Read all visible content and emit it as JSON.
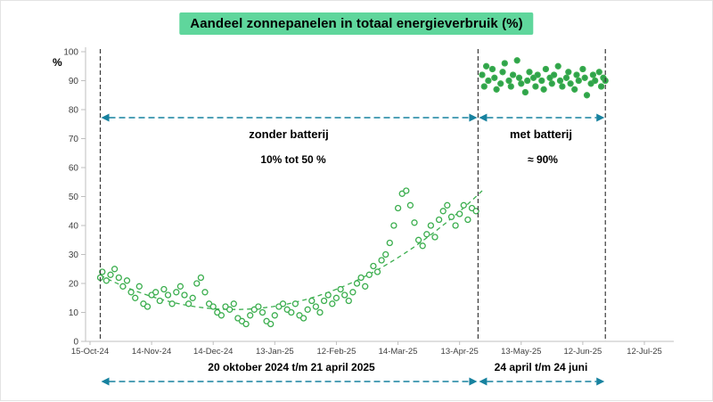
{
  "title": "Aandeel zonnepanelen in totaal energieverbruik (%)",
  "y_axis_unit": "%",
  "annotations": {
    "period1_label": "zonder batterij",
    "period1_range": "10% tot 50 %",
    "period2_label": "met batterij",
    "period2_range": "≈ 90%",
    "period1_dates": "20 oktober 2024 t/m 21 april 2025",
    "period2_dates": "24 april t/m 24 juni"
  },
  "colors": {
    "title_bg": "#5fd69c",
    "point_green": "#3bae4e",
    "point_fill_met": "#2fa24c",
    "arrow_teal": "#17829f",
    "divider": "#3a3a3a",
    "axis": "#bfbfbf",
    "tick_text": "#404040"
  },
  "chart_data": {
    "type": "scatter",
    "title": "Aandeel zonnepanelen in totaal energieverbruik (%)",
    "xlabel": "",
    "ylabel": "%",
    "ylim": [
      0,
      100
    ],
    "yticks": [
      0,
      10,
      20,
      30,
      40,
      50,
      60,
      70,
      80,
      90,
      100
    ],
    "grid": false,
    "legend_position": "none",
    "x_day_zero_label": "15-Oct-24",
    "x_tick_labels": [
      "15-Oct-24",
      "14-Nov-24",
      "14-Dec-24",
      "13-Jan-25",
      "12-Feb-25",
      "14-Mar-25",
      "13-Apr-25",
      "13-May-25",
      "12-Jun-25",
      "12-Jul-25"
    ],
    "x_tick_days": [
      0,
      30,
      60,
      90,
      120,
      150,
      180,
      210,
      240,
      270
    ],
    "xlim_days": [
      0,
      270
    ],
    "series": [
      {
        "name": "zonder batterij",
        "marker": "open-circle",
        "points": [
          [
            5,
            22
          ],
          [
            6,
            24
          ],
          [
            8,
            21
          ],
          [
            10,
            23
          ],
          [
            12,
            25
          ],
          [
            14,
            22
          ],
          [
            16,
            19
          ],
          [
            18,
            21
          ],
          [
            20,
            17
          ],
          [
            22,
            15
          ],
          [
            24,
            19
          ],
          [
            26,
            13
          ],
          [
            28,
            12
          ],
          [
            30,
            16
          ],
          [
            32,
            17
          ],
          [
            34,
            14
          ],
          [
            36,
            18
          ],
          [
            38,
            16
          ],
          [
            40,
            13
          ],
          [
            42,
            17
          ],
          [
            44,
            19
          ],
          [
            46,
            16
          ],
          [
            48,
            13
          ],
          [
            50,
            15
          ],
          [
            52,
            20
          ],
          [
            54,
            22
          ],
          [
            56,
            17
          ],
          [
            58,
            13
          ],
          [
            60,
            12
          ],
          [
            62,
            10
          ],
          [
            64,
            9
          ],
          [
            66,
            12
          ],
          [
            68,
            11
          ],
          [
            70,
            13
          ],
          [
            72,
            8
          ],
          [
            74,
            7
          ],
          [
            76,
            6
          ],
          [
            78,
            9
          ],
          [
            80,
            11
          ],
          [
            82,
            12
          ],
          [
            84,
            10
          ],
          [
            86,
            7
          ],
          [
            88,
            6
          ],
          [
            90,
            9
          ],
          [
            92,
            12
          ],
          [
            94,
            13
          ],
          [
            96,
            11
          ],
          [
            98,
            10
          ],
          [
            100,
            13
          ],
          [
            102,
            9
          ],
          [
            104,
            8
          ],
          [
            106,
            11
          ],
          [
            108,
            14
          ],
          [
            110,
            12
          ],
          [
            112,
            10
          ],
          [
            114,
            14
          ],
          [
            116,
            16
          ],
          [
            118,
            13
          ],
          [
            120,
            15
          ],
          [
            122,
            18
          ],
          [
            124,
            16
          ],
          [
            126,
            14
          ],
          [
            128,
            17
          ],
          [
            130,
            20
          ],
          [
            132,
            22
          ],
          [
            134,
            19
          ],
          [
            136,
            23
          ],
          [
            138,
            26
          ],
          [
            140,
            24
          ],
          [
            142,
            28
          ],
          [
            144,
            30
          ],
          [
            146,
            34
          ],
          [
            148,
            40
          ],
          [
            150,
            46
          ],
          [
            152,
            51
          ],
          [
            154,
            52
          ],
          [
            156,
            47
          ],
          [
            158,
            41
          ],
          [
            160,
            35
          ],
          [
            162,
            33
          ],
          [
            164,
            37
          ],
          [
            166,
            40
          ],
          [
            168,
            36
          ],
          [
            170,
            42
          ],
          [
            172,
            45
          ],
          [
            174,
            47
          ],
          [
            176,
            43
          ],
          [
            178,
            40
          ],
          [
            180,
            44
          ],
          [
            182,
            47
          ],
          [
            184,
            42
          ],
          [
            186,
            46
          ],
          [
            188,
            45
          ]
        ]
      },
      {
        "name": "met batterij",
        "marker": "filled-circle",
        "points": [
          [
            191,
            92
          ],
          [
            192,
            88
          ],
          [
            193,
            95
          ],
          [
            194,
            90
          ],
          [
            196,
            94
          ],
          [
            197,
            91
          ],
          [
            198,
            87
          ],
          [
            200,
            89
          ],
          [
            201,
            93
          ],
          [
            202,
            96
          ],
          [
            204,
            90
          ],
          [
            205,
            88
          ],
          [
            206,
            92
          ],
          [
            208,
            97
          ],
          [
            209,
            91
          ],
          [
            210,
            89
          ],
          [
            212,
            86
          ],
          [
            213,
            90
          ],
          [
            214,
            93
          ],
          [
            216,
            91
          ],
          [
            217,
            88
          ],
          [
            218,
            92
          ],
          [
            220,
            90
          ],
          [
            221,
            87
          ],
          [
            222,
            94
          ],
          [
            224,
            91
          ],
          [
            225,
            89
          ],
          [
            226,
            92
          ],
          [
            228,
            95
          ],
          [
            229,
            90
          ],
          [
            230,
            88
          ],
          [
            232,
            91
          ],
          [
            233,
            93
          ],
          [
            234,
            89
          ],
          [
            236,
            87
          ],
          [
            237,
            92
          ],
          [
            238,
            90
          ],
          [
            240,
            94
          ],
          [
            241,
            91
          ],
          [
            242,
            85
          ],
          [
            244,
            89
          ],
          [
            245,
            92
          ],
          [
            246,
            90
          ],
          [
            248,
            93
          ],
          [
            249,
            88
          ],
          [
            250,
            91
          ],
          [
            251,
            90
          ]
        ]
      }
    ],
    "trend": {
      "type": "quadratic",
      "applies_to": "zonder batterij",
      "style": "dashed",
      "vertex_day": 70,
      "vertex_value": 11,
      "coeff": 0.0028,
      "start_day": 5,
      "end_day": 191
    },
    "dividers_days": [
      5,
      189,
      251
    ],
    "periods": [
      {
        "label": "zonder batterij",
        "range_label": "10% tot 50 %",
        "date_label": "20 oktober 2024 t/m 21 april 2025",
        "start_day": 5,
        "end_day": 189
      },
      {
        "label": "met batterij",
        "range_label": "≈ 90%",
        "date_label": "24 april t/m 24 juni",
        "start_day": 189,
        "end_day": 251
      }
    ]
  }
}
